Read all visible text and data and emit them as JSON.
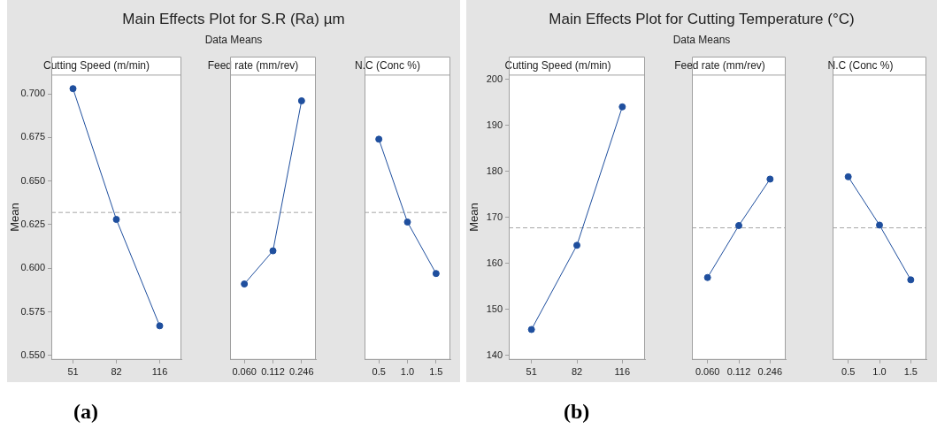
{
  "chart_data": [
    {
      "type": "other",
      "title": "Main Effects Plot for S.R (Ra) µm",
      "subtitle": "Data Means",
      "annotations": [
        "(a)"
      ]
    },
    {
      "type": "line",
      "title": "Cutting Speed (m/min)",
      "ylabel": "Mean",
      "categories": [
        "51",
        "82",
        "116"
      ],
      "series": [
        {
          "color": "#1f4f9e",
          "values": [
            0.703,
            0.628,
            0.567
          ]
        }
      ],
      "ylim": [
        0.5475,
        0.711
      ],
      "yticks": [
        {
          "value": 0.55,
          "label": "0.550"
        },
        {
          "value": 0.575,
          "label": "0.575"
        },
        {
          "value": 0.6,
          "label": "0.600"
        },
        {
          "value": 0.625,
          "label": "0.625"
        },
        {
          "value": 0.65,
          "label": "0.650"
        },
        {
          "value": 0.675,
          "label": "0.675"
        },
        {
          "value": 0.7,
          "label": "0.700"
        }
      ],
      "ref_lines": [
        {
          "axis": "y",
          "value": 0.632,
          "color": "#a6a6a6",
          "line_style": "dashed"
        }
      ],
      "marker": "circle",
      "grid": false,
      "legend": false
    },
    {
      "type": "line",
      "title": "Feed rate (mm/rev)",
      "categories": [
        "0.060",
        "0.112",
        "0.246"
      ],
      "series": [
        {
          "color": "#1f4f9e",
          "values": [
            0.591,
            0.61,
            0.696
          ]
        }
      ],
      "ylim": [
        0.5475,
        0.711
      ],
      "tick_labels": "x",
      "ref_lines": [
        {
          "axis": "y",
          "value": 0.632,
          "color": "#a6a6a6",
          "line_style": "dashed"
        }
      ],
      "marker": "circle",
      "grid": false,
      "legend": false
    },
    {
      "type": "line",
      "title": "N.C (Conc %)",
      "categories": [
        "0.5",
        "1.0",
        "1.5"
      ],
      "series": [
        {
          "color": "#1f4f9e",
          "values": [
            0.674,
            0.6265,
            0.597
          ]
        }
      ],
      "ylim": [
        0.5475,
        0.711
      ],
      "tick_labels": "x",
      "ref_lines": [
        {
          "axis": "y",
          "value": 0.632,
          "color": "#a6a6a6",
          "line_style": "dashed"
        }
      ],
      "marker": "circle",
      "grid": false,
      "legend": false
    },
    {
      "type": "other",
      "title": "Main Effects Plot for Cutting Temperature (°C)",
      "subtitle": "Data Means",
      "annotations": [
        "(b)"
      ]
    },
    {
      "type": "line",
      "title": "Cutting Speed (m/min)",
      "ylabel": "Mean",
      "categories": [
        "51",
        "82",
        "116"
      ],
      "series": [
        {
          "color": "#1f4f9e",
          "values": [
            145.6,
            163.9,
            194.0
          ]
        }
      ],
      "ylim": [
        139,
        201
      ],
      "yticks": [
        140,
        150,
        160,
        170,
        180,
        190,
        200
      ],
      "ref_lines": [
        {
          "axis": "y",
          "value": 167.7,
          "color": "#a6a6a6",
          "line_style": "dashed"
        }
      ],
      "marker": "circle",
      "grid": false,
      "legend": false
    },
    {
      "type": "line",
      "title": "Feed rate (mm/rev)",
      "categories": [
        "0.060",
        "0.112",
        "0.246"
      ],
      "series": [
        {
          "color": "#1f4f9e",
          "values": [
            156.9,
            168.2,
            178.3
          ]
        }
      ],
      "ylim": [
        139,
        201
      ],
      "tick_labels": "x",
      "ref_lines": [
        {
          "axis": "y",
          "value": 167.7,
          "color": "#a6a6a6",
          "line_style": "dashed"
        }
      ],
      "marker": "circle",
      "grid": false,
      "legend": false
    },
    {
      "type": "line",
      "title": "N.C (Conc %)",
      "categories": [
        "0.5",
        "1.0",
        "1.5"
      ],
      "series": [
        {
          "color": "#1f4f9e",
          "values": [
            178.8,
            168.3,
            156.4
          ]
        }
      ],
      "ylim": [
        139,
        201
      ],
      "tick_labels": "x",
      "ref_lines": [
        {
          "axis": "y",
          "value": 167.7,
          "color": "#a6a6a6",
          "line_style": "dashed"
        }
      ],
      "marker": "circle",
      "grid": false,
      "legend": false
    }
  ]
}
